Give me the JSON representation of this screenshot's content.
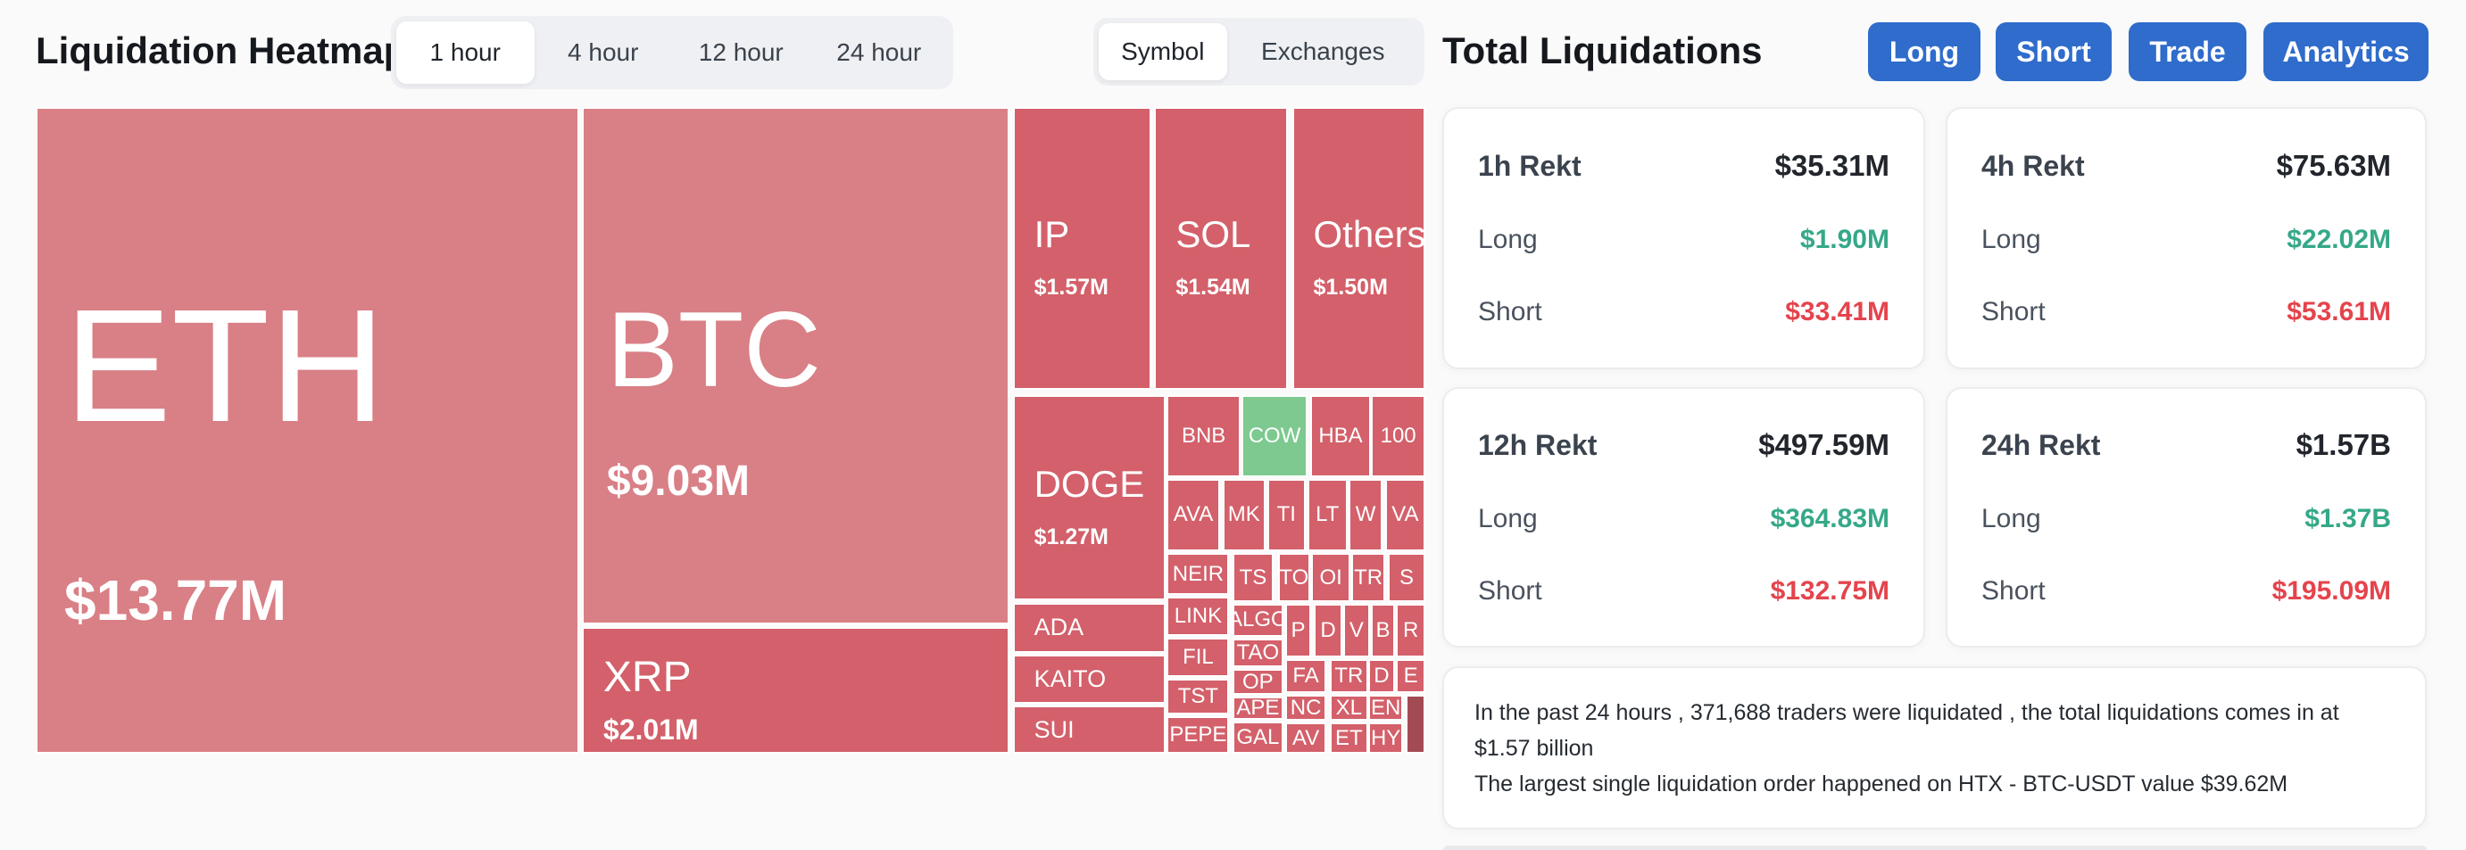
{
  "header": {
    "title": "Liquidation Heatmap",
    "time_tabs": [
      "1 hour",
      "4 hour",
      "12 hour",
      "24 hour"
    ],
    "active_time_tab": "1 hour",
    "view_tabs": [
      "Symbol",
      "Exchanges"
    ],
    "active_view_tab": "Symbol"
  },
  "right_panel": {
    "title": "Total Liquidations",
    "buttons": [
      "Long",
      "Short",
      "Trade",
      "Analytics"
    ],
    "row_labels": {
      "long": "Long",
      "short": "Short"
    },
    "cards": [
      {
        "title": "1h Rekt",
        "total": "$35.31M",
        "long": "$1.90M",
        "short": "$33.41M"
      },
      {
        "title": "4h Rekt",
        "total": "$75.63M",
        "long": "$22.02M",
        "short": "$53.61M"
      },
      {
        "title": "12h Rekt",
        "total": "$497.59M",
        "long": "$364.83M",
        "short": "$132.75M"
      },
      {
        "title": "24h Rekt",
        "total": "$1.57B",
        "long": "$1.37B",
        "short": "$195.09M"
      }
    ],
    "summary": {
      "line1": "In the past 24 hours , 371,688 traders were liquidated , the total liquidations comes in at $1.57 billion",
      "line2": "The largest single liquidation order happened on HTX - BTC-USDT value $39.62M"
    }
  },
  "colors": {
    "accent_blue": "#2f6ccb",
    "long_green_text": "#35a888",
    "short_red_text": "#e4444d",
    "tiles": {
      "light": "#d97f86",
      "mid": "#d3606a",
      "green": "#7dc98f",
      "dark": "#a34b54"
    }
  },
  "chart_data": {
    "type": "treemap",
    "title": "Liquidation Heatmap",
    "period": "1 hour",
    "grouping": "Symbol",
    "unit": "USD",
    "tiles": [
      {
        "symbol": "ETH",
        "value_label": "$13.77M",
        "value_musd": 13.77,
        "color": "light",
        "x": 0,
        "y": 0,
        "w": 39.1,
        "h": 100,
        "size": "xl",
        "align": "left"
      },
      {
        "symbol": "BTC",
        "value_label": "$9.03M",
        "value_musd": 9.03,
        "color": "light",
        "x": 39.3,
        "y": 0,
        "w": 30.8,
        "h": 80.0,
        "size": "lg",
        "align": "left"
      },
      {
        "symbol": "XRP",
        "value_label": "$2.01M",
        "value_musd": 2.01,
        "color": "mid",
        "x": 39.3,
        "y": 80.4,
        "w": 30.8,
        "h": 19.6,
        "size": "mdx",
        "align": "left"
      },
      {
        "symbol": "IP",
        "value_label": "$1.57M",
        "value_musd": 1.57,
        "color": "mid",
        "x": 70.3,
        "y": 0,
        "w": 10.0,
        "h": 43.7,
        "size": "md",
        "align": "left"
      },
      {
        "symbol": "SOL",
        "value_label": "$1.54M",
        "value_musd": 1.54,
        "color": "mid",
        "x": 80.5,
        "y": 0,
        "w": 9.6,
        "h": 43.7,
        "size": "md",
        "align": "left"
      },
      {
        "symbol": "Others",
        "value_label": "$1.50M",
        "value_musd": 1.5,
        "color": "mid",
        "x": 90.4,
        "y": 0,
        "w": 9.6,
        "h": 43.7,
        "size": "md",
        "align": "left"
      },
      {
        "symbol": "DOGE",
        "value_label": "$1.27M",
        "value_musd": 1.27,
        "color": "mid",
        "x": 70.3,
        "y": 44.6,
        "w": 11.0,
        "h": 31.7,
        "size": "md",
        "align": "left"
      },
      {
        "symbol": "ADA",
        "value_label": "",
        "value_musd": null,
        "color": "mid",
        "x": 70.3,
        "y": 76.7,
        "w": 11.0,
        "h": 7.7,
        "size": "rowl",
        "align": "left"
      },
      {
        "symbol": "KAITO",
        "value_label": "",
        "value_musd": null,
        "color": "mid",
        "x": 70.3,
        "y": 84.7,
        "w": 11.0,
        "h": 7.6,
        "size": "rowl",
        "align": "left"
      },
      {
        "symbol": "SUI",
        "value_label": "",
        "value_musd": null,
        "color": "mid",
        "x": 70.3,
        "y": 92.6,
        "w": 11.0,
        "h": 7.4,
        "size": "rowl",
        "align": "left"
      },
      {
        "symbol": "BNB",
        "value_label": "",
        "value_musd": null,
        "color": "mid",
        "x": 81.4,
        "y": 44.6,
        "w": 5.3,
        "h": 12.7,
        "size": "sm",
        "align": "center"
      },
      {
        "symbol": "COW",
        "value_label": "",
        "value_musd": null,
        "color": "green",
        "x": 86.8,
        "y": 44.6,
        "w": 4.7,
        "h": 12.7,
        "size": "sm",
        "align": "center"
      },
      {
        "symbol": "HBA",
        "value_label": "",
        "value_musd": null,
        "color": "mid",
        "x": 91.7,
        "y": 44.6,
        "w": 4.4,
        "h": 12.7,
        "size": "sm",
        "align": "center"
      },
      {
        "symbol": "100",
        "value_label": "",
        "value_musd": null,
        "color": "mid",
        "x": 96.1,
        "y": 44.6,
        "w": 3.9,
        "h": 12.7,
        "size": "sm",
        "align": "center"
      },
      {
        "symbol": "AVA",
        "value_label": "",
        "value_musd": null,
        "color": "mid",
        "x": 81.4,
        "y": 57.5,
        "w": 3.8,
        "h": 11.2,
        "size": "sm",
        "align": "center"
      },
      {
        "symbol": "MK",
        "value_label": "",
        "value_musd": null,
        "color": "mid",
        "x": 85.4,
        "y": 57.5,
        "w": 3.1,
        "h": 11.2,
        "size": "sm",
        "align": "center"
      },
      {
        "symbol": "TI",
        "value_label": "",
        "value_musd": null,
        "color": "mid",
        "x": 88.6,
        "y": 57.5,
        "w": 2.8,
        "h": 11.2,
        "size": "sm",
        "align": "center"
      },
      {
        "symbol": "LT",
        "value_label": "",
        "value_musd": null,
        "color": "mid",
        "x": 91.5,
        "y": 57.5,
        "w": 2.9,
        "h": 11.2,
        "size": "sm",
        "align": "center"
      },
      {
        "symbol": "W",
        "value_label": "",
        "value_musd": null,
        "color": "mid",
        "x": 94.5,
        "y": 57.5,
        "w": 2.4,
        "h": 11.2,
        "size": "sm",
        "align": "center"
      },
      {
        "symbol": "VA",
        "value_label": "",
        "value_musd": null,
        "color": "mid",
        "x": 97.1,
        "y": 57.5,
        "w": 2.9,
        "h": 11.2,
        "size": "sm",
        "align": "center"
      },
      {
        "symbol": "NEIR",
        "value_label": "",
        "value_musd": null,
        "color": "mid",
        "x": 81.4,
        "y": 69.0,
        "w": 4.5,
        "h": 6.5,
        "size": "sm",
        "align": "center"
      },
      {
        "symbol": "TS",
        "value_label": "",
        "value_musd": null,
        "color": "mid",
        "x": 86.1,
        "y": 69.0,
        "w": 3.0,
        "h": 7.6,
        "size": "sm",
        "align": "center"
      },
      {
        "symbol": "TO",
        "value_label": "",
        "value_musd": null,
        "color": "mid",
        "x": 89.4,
        "y": 69.0,
        "w": 2.3,
        "h": 7.6,
        "size": "sm",
        "align": "center"
      },
      {
        "symbol": "OI",
        "value_label": "",
        "value_musd": null,
        "color": "mid",
        "x": 91.8,
        "y": 69.0,
        "w": 2.8,
        "h": 7.6,
        "size": "sm",
        "align": "center"
      },
      {
        "symbol": "TR",
        "value_label": "",
        "value_musd": null,
        "color": "mid",
        "x": 94.7,
        "y": 69.0,
        "w": 2.4,
        "h": 7.6,
        "size": "sm",
        "align": "center"
      },
      {
        "symbol": "S",
        "value_label": "",
        "value_musd": null,
        "color": "mid",
        "x": 97.3,
        "y": 69.0,
        "w": 2.7,
        "h": 7.6,
        "size": "sm",
        "align": "center"
      },
      {
        "symbol": "LINK",
        "value_label": "",
        "value_musd": null,
        "color": "mid",
        "x": 81.4,
        "y": 75.7,
        "w": 4.5,
        "h": 6.1,
        "size": "sm",
        "align": "center"
      },
      {
        "symbol": "FIL",
        "value_label": "",
        "value_musd": null,
        "color": "mid",
        "x": 81.4,
        "y": 82.1,
        "w": 4.5,
        "h": 6.1,
        "size": "sm",
        "align": "center"
      },
      {
        "symbol": "TST",
        "value_label": "",
        "value_musd": null,
        "color": "mid",
        "x": 81.4,
        "y": 88.4,
        "w": 4.5,
        "h": 5.5,
        "size": "sm",
        "align": "center"
      },
      {
        "symbol": "PEPE",
        "value_label": "",
        "value_musd": null,
        "color": "mid",
        "x": 81.4,
        "y": 94.2,
        "w": 4.5,
        "h": 5.8,
        "size": "sm",
        "align": "center"
      },
      {
        "symbol": "ALGO",
        "value_label": "",
        "value_musd": null,
        "color": "mid",
        "x": 86.1,
        "y": 76.8,
        "w": 3.7,
        "h": 5.1,
        "size": "sm",
        "align": "center"
      },
      {
        "symbol": "TAO",
        "value_label": "",
        "value_musd": null,
        "color": "mid",
        "x": 86.1,
        "y": 82.2,
        "w": 3.7,
        "h": 4.4,
        "size": "sm",
        "align": "center"
      },
      {
        "symbol": "OP",
        "value_label": "",
        "value_musd": null,
        "color": "mid",
        "x": 86.1,
        "y": 86.9,
        "w": 3.7,
        "h": 4.0,
        "size": "sm",
        "align": "center"
      },
      {
        "symbol": "APE",
        "value_label": "",
        "value_musd": null,
        "color": "mid",
        "x": 86.1,
        "y": 91.2,
        "w": 3.7,
        "h": 3.6,
        "size": "sm",
        "align": "center"
      },
      {
        "symbol": "GAL",
        "value_label": "",
        "value_musd": null,
        "color": "mid",
        "x": 86.1,
        "y": 95.0,
        "w": 3.7,
        "h": 5.0,
        "size": "sm",
        "align": "center"
      },
      {
        "symbol": "P",
        "value_label": "",
        "value_musd": null,
        "color": "mid",
        "x": 89.9,
        "y": 76.8,
        "w": 1.9,
        "h": 8.3,
        "size": "sm",
        "align": "center"
      },
      {
        "symbol": "D",
        "value_label": "",
        "value_musd": null,
        "color": "mid",
        "x": 92.0,
        "y": 76.8,
        "w": 2.0,
        "h": 8.3,
        "size": "sm",
        "align": "center"
      },
      {
        "symbol": "V",
        "value_label": "",
        "value_musd": null,
        "color": "mid",
        "x": 94.1,
        "y": 76.8,
        "w": 1.9,
        "h": 8.3,
        "size": "sm",
        "align": "center"
      },
      {
        "symbol": "B",
        "value_label": "",
        "value_musd": null,
        "color": "mid",
        "x": 96.1,
        "y": 76.8,
        "w": 1.7,
        "h": 8.3,
        "size": "sm",
        "align": "center"
      },
      {
        "symbol": "R",
        "value_label": "",
        "value_musd": null,
        "color": "mid",
        "x": 97.9,
        "y": 76.8,
        "w": 2.1,
        "h": 8.3,
        "size": "sm",
        "align": "center"
      },
      {
        "symbol": "FA",
        "value_label": "",
        "value_musd": null,
        "color": "mid",
        "x": 89.9,
        "y": 85.4,
        "w": 3.0,
        "h": 5.2,
        "size": "sm",
        "align": "center"
      },
      {
        "symbol": "TR",
        "value_label": "",
        "value_musd": null,
        "color": "mid",
        "x": 93.1,
        "y": 85.4,
        "w": 2.8,
        "h": 5.2,
        "size": "sm",
        "align": "center"
      },
      {
        "symbol": "D",
        "value_label": "",
        "value_musd": null,
        "color": "mid",
        "x": 95.9,
        "y": 85.4,
        "w": 1.9,
        "h": 5.2,
        "size": "sm",
        "align": "center"
      },
      {
        "symbol": "E",
        "value_label": "",
        "value_musd": null,
        "color": "mid",
        "x": 97.9,
        "y": 85.4,
        "w": 2.1,
        "h": 5.2,
        "size": "sm",
        "align": "center"
      },
      {
        "symbol": "NC",
        "value_label": "",
        "value_musd": null,
        "color": "mid",
        "x": 89.9,
        "y": 90.9,
        "w": 3.0,
        "h": 4.0,
        "size": "sm",
        "align": "center"
      },
      {
        "symbol": "XL",
        "value_label": "",
        "value_musd": null,
        "color": "mid",
        "x": 93.1,
        "y": 90.9,
        "w": 2.8,
        "h": 4.0,
        "size": "sm",
        "align": "center"
      },
      {
        "symbol": "EN",
        "value_label": "",
        "value_musd": null,
        "color": "mid",
        "x": 95.9,
        "y": 90.9,
        "w": 2.5,
        "h": 4.0,
        "size": "sm",
        "align": "center"
      },
      {
        "symbol": "",
        "value_label": "",
        "value_musd": null,
        "color": "dark",
        "x": 98.6,
        "y": 90.9,
        "w": 1.4,
        "h": 9.1,
        "size": "sm",
        "align": "center"
      },
      {
        "symbol": "AV",
        "value_label": "",
        "value_musd": null,
        "color": "mid",
        "x": 89.9,
        "y": 95.2,
        "w": 3.0,
        "h": 4.8,
        "size": "sm",
        "align": "center"
      },
      {
        "symbol": "ET",
        "value_label": "",
        "value_musd": null,
        "color": "mid",
        "x": 93.1,
        "y": 95.2,
        "w": 2.8,
        "h": 4.8,
        "size": "sm",
        "align": "center"
      },
      {
        "symbol": "HY",
        "value_label": "",
        "value_musd": null,
        "color": "mid",
        "x": 95.9,
        "y": 95.2,
        "w": 2.5,
        "h": 4.8,
        "size": "sm",
        "align": "center"
      }
    ]
  }
}
